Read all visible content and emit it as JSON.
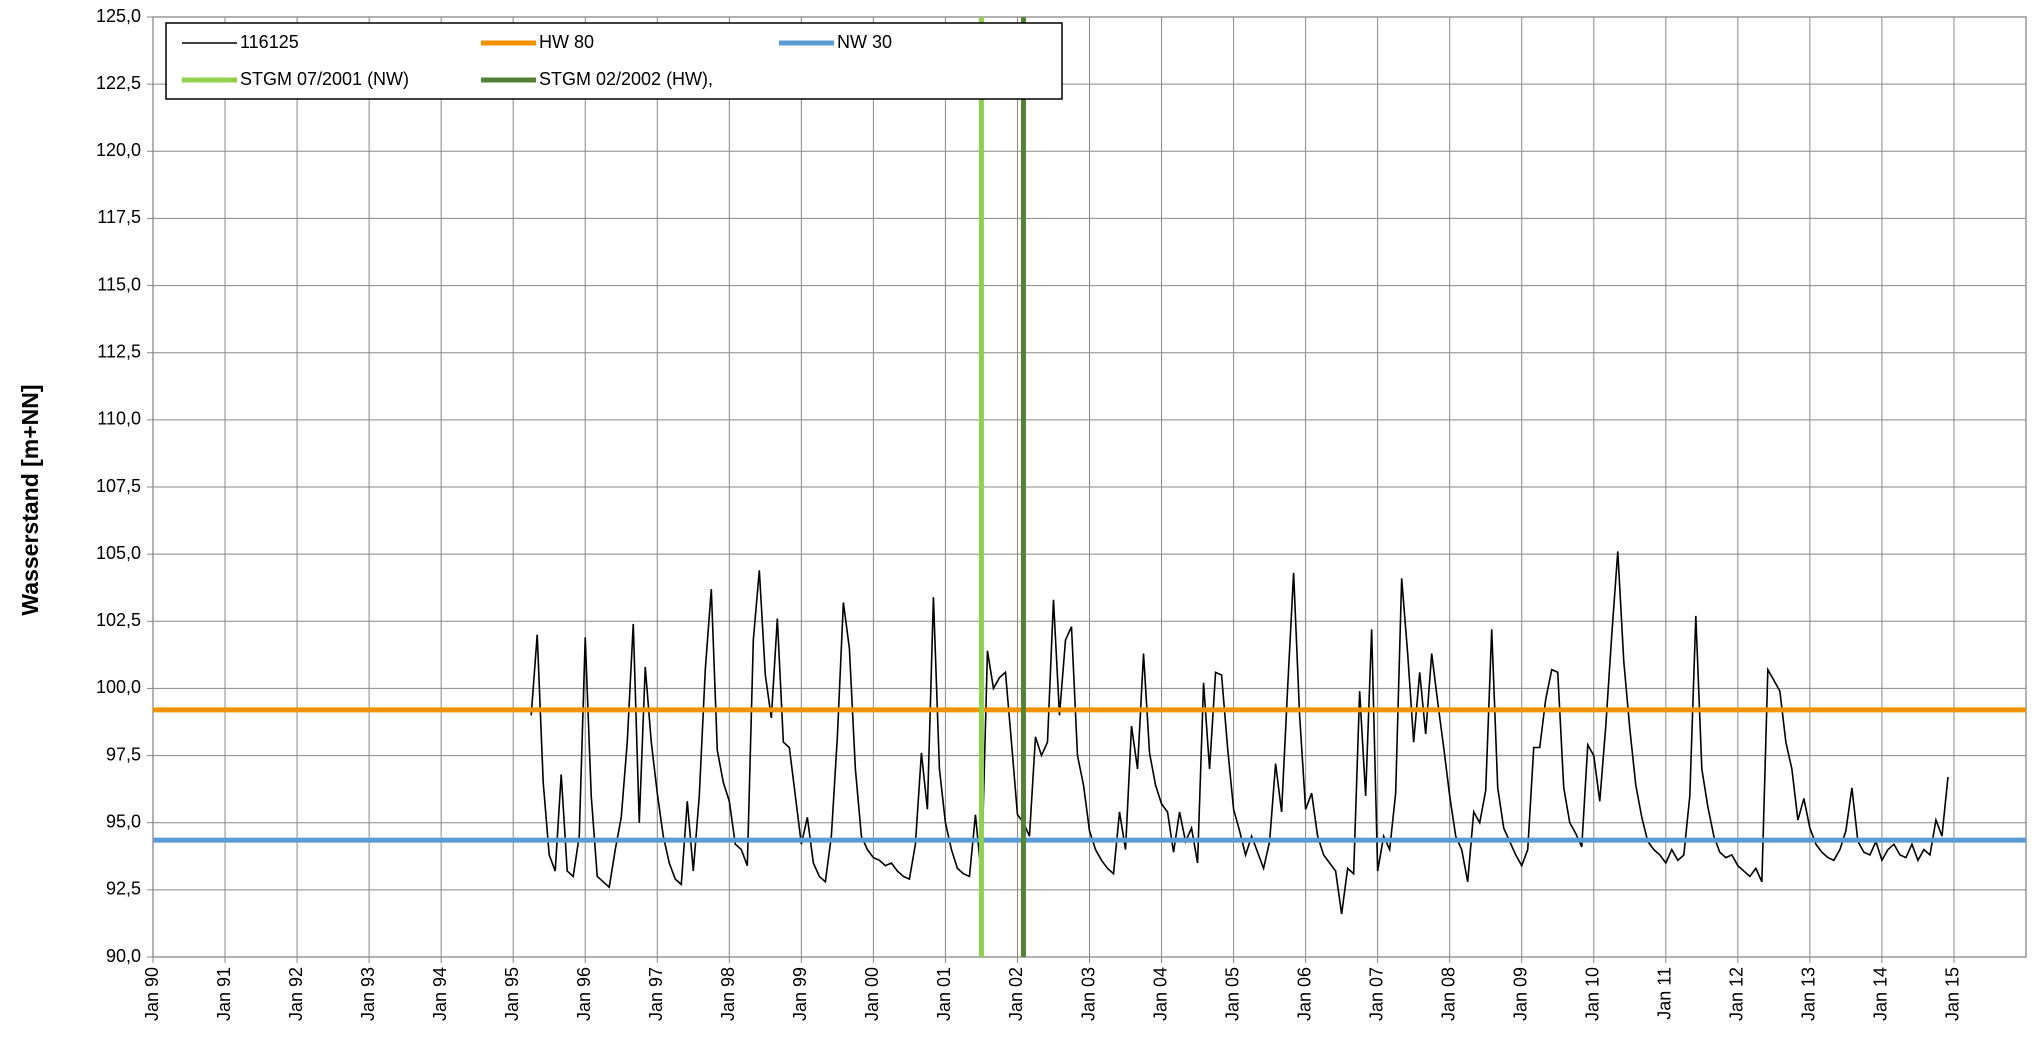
{
  "chart_data": {
    "type": "line",
    "y_label": "Wasserstand [m+NN]",
    "xlim": [
      "1990-01",
      "2016-01"
    ],
    "xticks": [
      {
        "value": "1990-01",
        "label": "Jan 90"
      },
      {
        "value": "1991-01",
        "label": "Jan 91"
      },
      {
        "value": "1992-01",
        "label": "Jan 92"
      },
      {
        "value": "1993-01",
        "label": "Jan 93"
      },
      {
        "value": "1994-01",
        "label": "Jan 94"
      },
      {
        "value": "1995-01",
        "label": "Jan 95"
      },
      {
        "value": "1996-01",
        "label": "Jan 96"
      },
      {
        "value": "1997-01",
        "label": "Jan 97"
      },
      {
        "value": "1998-01",
        "label": "Jan 98"
      },
      {
        "value": "1999-01",
        "label": "Jan 99"
      },
      {
        "value": "2000-01",
        "label": "Jan 00"
      },
      {
        "value": "2001-01",
        "label": "Jan 01"
      },
      {
        "value": "2002-01",
        "label": "Jan 02"
      },
      {
        "value": "2003-01",
        "label": "Jan 03"
      },
      {
        "value": "2004-01",
        "label": "Jan 04"
      },
      {
        "value": "2005-01",
        "label": "Jan 05"
      },
      {
        "value": "2006-01",
        "label": "Jan 06"
      },
      {
        "value": "2007-01",
        "label": "Jan 07"
      },
      {
        "value": "2008-01",
        "label": "Jan 08"
      },
      {
        "value": "2009-01",
        "label": "Jan 09"
      },
      {
        "value": "2010-01",
        "label": "Jan 10"
      },
      {
        "value": "2011-01",
        "label": "Jan 11"
      },
      {
        "value": "2012-01",
        "label": "Jan 12"
      },
      {
        "value": "2013-01",
        "label": "Jan 13"
      },
      {
        "value": "2014-01",
        "label": "Jan 14"
      },
      {
        "value": "2015-01",
        "label": "Jan 15"
      }
    ],
    "ylim": [
      90,
      125
    ],
    "yticks": [
      {
        "value": 90,
        "label": "90,0"
      },
      {
        "value": 92.5,
        "label": "92,5"
      },
      {
        "value": 95,
        "label": "95,0"
      },
      {
        "value": 97.5,
        "label": "97,5"
      },
      {
        "value": 100,
        "label": "100,0"
      },
      {
        "value": 102.5,
        "label": "102,5"
      },
      {
        "value": 105,
        "label": "105,0"
      },
      {
        "value": 107.5,
        "label": "107,5"
      },
      {
        "value": 110,
        "label": "110,0"
      },
      {
        "value": 112.5,
        "label": "112,5"
      },
      {
        "value": 115,
        "label": "115,0"
      },
      {
        "value": 117.5,
        "label": "117,5"
      },
      {
        "value": 120,
        "label": "120,0"
      },
      {
        "value": 122.5,
        "label": "122,5"
      },
      {
        "value": 125,
        "label": "125,0"
      }
    ],
    "grid": true,
    "series": [
      {
        "name": "116125",
        "color": "#000000",
        "x": [
          "1995-04",
          "1995-05",
          "1995-06",
          "1995-07",
          "1995-08",
          "1995-09",
          "1995-10",
          "1995-11",
          "1995-12",
          "1996-01",
          "1996-02",
          "1996-03",
          "1996-04",
          "1996-05",
          "1996-06",
          "1996-07",
          "1996-08",
          "1996-09",
          "1996-10",
          "1996-11",
          "1996-12",
          "1997-01",
          "1997-02",
          "1997-03",
          "1997-04",
          "1997-05",
          "1997-06",
          "1997-07",
          "1997-08",
          "1997-09",
          "1997-10",
          "1997-11",
          "1997-12",
          "1998-01",
          "1998-02",
          "1998-03",
          "1998-04",
          "1998-05",
          "1998-06",
          "1998-07",
          "1998-08",
          "1998-09",
          "1998-10",
          "1998-11",
          "1998-12",
          "1999-01",
          "1999-02",
          "1999-03",
          "1999-04",
          "1999-05",
          "1999-06",
          "1999-07",
          "1999-08",
          "1999-09",
          "1999-10",
          "1999-11",
          "1999-12",
          "2000-01",
          "2000-02",
          "2000-03",
          "2000-04",
          "2000-05",
          "2000-06",
          "2000-07",
          "2000-08",
          "2000-09",
          "2000-10",
          "2000-11",
          "2000-12",
          "2001-01",
          "2001-02",
          "2001-03",
          "2001-04",
          "2001-05",
          "2001-06",
          "2001-07",
          "2001-08",
          "2001-09",
          "2001-10",
          "2001-11",
          "2001-12",
          "2002-01",
          "2002-02",
          "2002-03",
          "2002-04",
          "2002-05",
          "2002-06",
          "2002-07",
          "2002-08",
          "2002-09",
          "2002-10",
          "2002-11",
          "2002-12",
          "2003-01",
          "2003-02",
          "2003-03",
          "2003-04",
          "2003-05",
          "2003-06",
          "2003-07",
          "2003-08",
          "2003-09",
          "2003-10",
          "2003-11",
          "2003-12",
          "2004-01",
          "2004-02",
          "2004-03",
          "2004-04",
          "2004-05",
          "2004-06",
          "2004-07",
          "2004-08",
          "2004-09",
          "2004-10",
          "2004-11",
          "2004-12",
          "2005-01",
          "2005-02",
          "2005-03",
          "2005-04",
          "2005-05",
          "2005-06",
          "2005-07",
          "2005-08",
          "2005-09",
          "2005-10",
          "2005-11",
          "2005-12",
          "2006-01",
          "2006-02",
          "2006-03",
          "2006-04",
          "2006-05",
          "2006-06",
          "2006-07",
          "2006-08",
          "2006-09",
          "2006-10",
          "2006-11",
          "2006-12",
          "2007-01",
          "2007-02",
          "2007-03",
          "2007-04",
          "2007-05",
          "2007-06",
          "2007-07",
          "2007-08",
          "2007-09",
          "2007-10",
          "2007-11",
          "2007-12",
          "2008-01",
          "2008-02",
          "2008-03",
          "2008-04",
          "2008-05",
          "2008-06",
          "2008-07",
          "2008-08",
          "2008-09",
          "2008-10",
          "2008-11",
          "2008-12",
          "2009-01",
          "2009-02",
          "2009-03",
          "2009-04",
          "2009-05",
          "2009-06",
          "2009-07",
          "2009-08",
          "2009-09",
          "2009-10",
          "2009-11",
          "2009-12",
          "2010-01",
          "2010-02",
          "2010-03",
          "2010-04",
          "2010-05",
          "2010-06",
          "2010-07",
          "2010-08",
          "2010-09",
          "2010-10",
          "2010-11",
          "2010-12",
          "2011-01",
          "2011-02",
          "2011-03",
          "2011-04",
          "2011-05",
          "2011-06",
          "2011-07",
          "2011-08",
          "2011-09",
          "2011-10",
          "2011-11",
          "2011-12",
          "2012-01",
          "2012-02",
          "2012-03",
          "2012-04",
          "2012-05",
          "2012-06",
          "2012-07",
          "2012-08",
          "2012-09",
          "2012-10",
          "2012-11",
          "2012-12",
          "2013-01",
          "2013-02",
          "2013-03",
          "2013-04",
          "2013-05",
          "2013-06",
          "2013-07",
          "2013-08",
          "2013-09",
          "2013-10",
          "2013-11",
          "2013-12",
          "2014-01",
          "2014-02",
          "2014-03",
          "2014-04",
          "2014-05",
          "2014-06",
          "2014-07",
          "2014-08",
          "2014-09",
          "2014-10",
          "2014-11",
          "2014-12"
        ],
        "values": [
          99.0,
          102.0,
          96.5,
          93.8,
          93.2,
          96.8,
          93.2,
          93.0,
          94.5,
          101.9,
          96.0,
          93.0,
          92.8,
          92.6,
          94.0,
          95.2,
          98.0,
          102.4,
          95.0,
          100.8,
          98.0,
          96.1,
          94.5,
          93.5,
          92.9,
          92.7,
          95.8,
          93.2,
          96.0,
          100.7,
          103.7,
          97.7,
          96.5,
          95.8,
          94.2,
          94.0,
          93.4,
          101.8,
          104.4,
          100.5,
          98.9,
          102.6,
          98.0,
          97.8,
          96.0,
          94.2,
          95.2,
          93.5,
          93.0,
          92.8,
          94.5,
          98.2,
          103.2,
          101.5,
          97.0,
          94.5,
          94.0,
          93.7,
          93.6,
          93.4,
          93.5,
          93.2,
          93.0,
          92.9,
          94.2,
          97.6,
          95.5,
          103.4,
          97.0,
          95.0,
          94.0,
          93.3,
          93.1,
          93.0,
          95.3,
          93.0,
          101.4,
          100.0,
          100.4,
          100.6,
          98.0,
          95.3,
          95.0,
          94.5,
          98.2,
          97.5,
          98.0,
          103.3,
          99.0,
          101.8,
          102.3,
          97.5,
          96.4,
          94.7,
          94.0,
          93.6,
          93.3,
          93.1,
          95.4,
          94.0,
          98.6,
          97.0,
          101.3,
          97.6,
          96.4,
          95.7,
          95.4,
          93.9,
          95.4,
          94.3,
          94.8,
          93.5,
          100.2,
          97.0,
          100.6,
          100.5,
          97.8,
          95.5,
          94.7,
          93.8,
          94.5,
          93.9,
          93.3,
          94.3,
          97.2,
          95.4,
          100.0,
          104.3,
          99.0,
          95.5,
          96.1,
          94.5,
          93.8,
          93.5,
          93.2,
          91.6,
          93.3,
          93.1,
          99.9,
          96.0,
          102.2,
          93.2,
          94.5,
          94.0,
          96.1,
          104.1,
          101.3,
          98.0,
          100.6,
          98.3,
          101.3,
          99.5,
          97.8,
          96.0,
          94.5,
          94.0,
          92.8,
          95.4,
          95.0,
          96.2,
          102.2,
          96.3,
          94.8,
          94.3,
          93.8,
          93.4,
          94.0,
          97.8,
          97.8,
          99.6,
          100.7,
          100.6,
          96.3,
          95.0,
          94.6,
          94.1,
          97.9,
          97.5,
          95.8,
          98.6,
          102.0,
          105.1,
          101.0,
          98.5,
          96.4,
          95.2,
          94.3,
          94.0,
          93.8,
          93.5,
          94.0,
          93.6,
          93.8,
          96.0,
          102.7,
          97.0,
          95.6,
          94.5,
          93.9,
          93.7,
          93.8,
          93.4,
          93.2,
          93.0,
          93.3,
          92.8,
          100.7,
          100.3,
          99.9,
          98.0,
          97.0,
          95.1,
          95.9,
          94.8,
          94.2,
          93.9,
          93.7,
          93.6,
          94.0,
          94.7,
          96.3,
          94.3,
          93.9,
          93.8,
          94.3,
          93.6,
          94.0,
          94.2,
          93.8,
          93.7,
          94.2,
          93.6,
          94.0,
          93.8,
          95.1,
          94.5,
          96.7
        ]
      },
      {
        "name": "HW 80",
        "color": "#f39200",
        "y": 99.2
      },
      {
        "name": "NW 30",
        "color": "#5b9bd5",
        "y": 94.35
      },
      {
        "name": "STGM 07/2001 (NW)",
        "color": "#92d050",
        "x": "2001-07"
      },
      {
        "name": "STGM 02/2002 (HW),",
        "color": "#548235",
        "x": "2002-02"
      }
    ]
  }
}
